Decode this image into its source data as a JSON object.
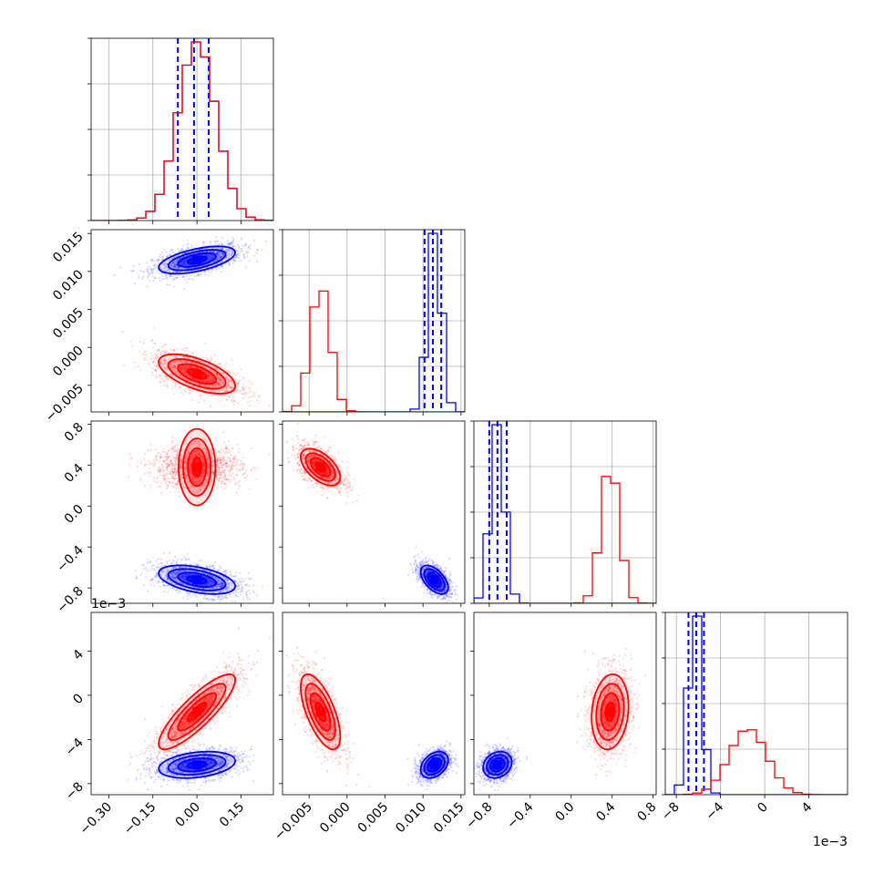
{
  "chart_data": {
    "type": "corner",
    "colors": {
      "series_a": "#0000ff",
      "series_b": "#ff0000"
    },
    "grid": true,
    "offset_labels": {
      "left_row3": "1e−3",
      "bottom_col3": "1e−3"
    },
    "params": [
      {
        "key": "p1",
        "range": [
          -0.36,
          0.26
        ],
        "ticks": [
          {
            "v": -0.3,
            "t": "−0.30"
          },
          {
            "v": -0.15,
            "t": "−0.15"
          },
          {
            "v": 0.0,
            "t": "0.00"
          },
          {
            "v": 0.15,
            "t": "0.15"
          }
        ]
      },
      {
        "key": "p2",
        "range": [
          -0.0085,
          0.0155
        ],
        "ticks": [
          {
            "v": -0.005,
            "t": "−0.005"
          },
          {
            "v": 0.0,
            "t": "0.000"
          },
          {
            "v": 0.005,
            "t": "0.005"
          },
          {
            "v": 0.01,
            "t": "0.010"
          },
          {
            "v": 0.015,
            "t": "0.015"
          }
        ]
      },
      {
        "key": "p3",
        "range": [
          -0.95,
          0.83
        ],
        "ticks": [
          {
            "v": -0.8,
            "t": "−0.8"
          },
          {
            "v": -0.4,
            "t": "−0.4"
          },
          {
            "v": 0.0,
            "t": "0.0"
          },
          {
            "v": 0.4,
            "t": "0.4"
          },
          {
            "v": 0.8,
            "t": "0.8"
          }
        ]
      },
      {
        "key": "p4",
        "range": [
          -9.0,
          7.5
        ],
        "ticks": [
          {
            "v": -8,
            "t": "−8"
          },
          {
            "v": -4,
            "t": "−4"
          },
          {
            "v": 0,
            "t": "0"
          },
          {
            "v": 4,
            "t": "4"
          }
        ]
      }
    ],
    "series": [
      {
        "color": "#0000ff",
        "mean": [
          0.0,
          0.0115,
          -0.72,
          -6.3
        ],
        "sd": [
          0.065,
          0.0009,
          0.07,
          0.6
        ],
        "corr": {
          "0-1": 0.55,
          "0-2": -0.45,
          "0-3": 0.3,
          "1-2": -0.55,
          "1-3": 0.35,
          "2-3": 0.2
        },
        "quantiles": [
          [
            -0.065,
            -0.01,
            0.04
          ],
          [
            0.0102,
            0.0113,
            0.0124
          ],
          [
            -0.8,
            -0.72,
            -0.63
          ],
          [
            -6.9,
            -6.2,
            -5.5
          ]
        ]
      },
      {
        "color": "#ff0000",
        "mean": [
          0.0,
          -0.0035,
          0.38,
          -1.5
        ],
        "sd": [
          0.065,
          0.0013,
          0.09,
          1.7
        ],
        "corr": {
          "0-1": -0.6,
          "0-2": 0.0,
          "0-3": 0.85,
          "1-2": -0.55,
          "1-3": -0.65,
          "2-3": 0.15
        },
        "quantiles": []
      }
    ]
  }
}
